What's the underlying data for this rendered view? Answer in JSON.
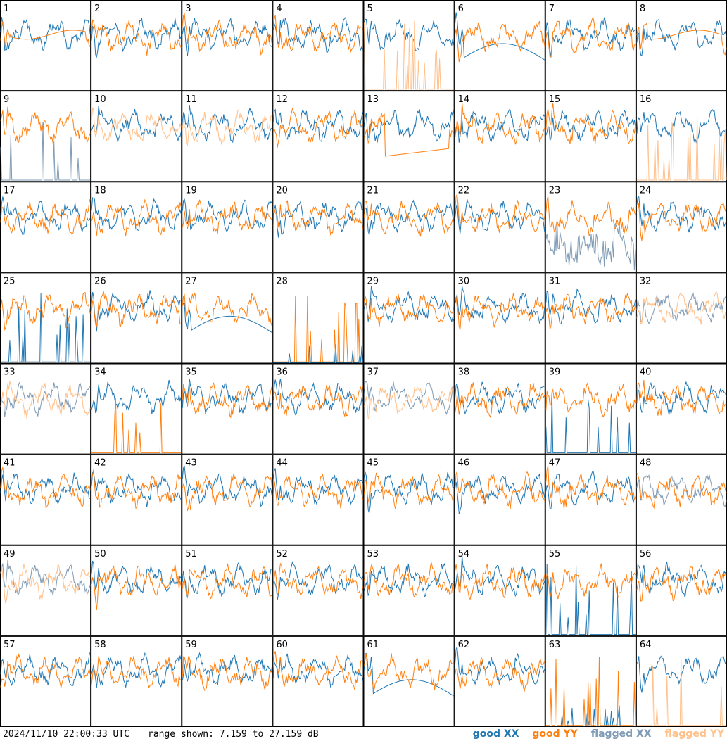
{
  "footer": {
    "timestamp": "2024/11/10 22:00:33 UTC",
    "range_text": "range shown: 7.159 to 27.159 dB"
  },
  "legend": {
    "good_xx": "good XX",
    "good_yy": "good YY",
    "flagged_xx": "flagged XX",
    "flagged_yy": "flagged YY"
  },
  "colors": {
    "good_xx": "#1f77b4",
    "good_yy": "#ff7f0e",
    "flagged_xx": "#7f9bb5",
    "flagged_yy": "#ffc08a"
  },
  "chart_data": {
    "type": "line",
    "layout": "small-multiples 8x8",
    "ylim_db": [
      7.159,
      27.159
    ],
    "series_names": [
      "good XX",
      "good YY",
      "flagged XX",
      "flagged YY"
    ],
    "panels": [
      {
        "label": "1",
        "xx": "good",
        "yy": "good",
        "note": "YY smooth plateau"
      },
      {
        "label": "2",
        "xx": "good",
        "yy": "good"
      },
      {
        "label": "3",
        "xx": "good",
        "yy": "good"
      },
      {
        "label": "4",
        "xx": "good",
        "yy": "good"
      },
      {
        "label": "5",
        "xx": "good",
        "yy": "flagged",
        "note": "YY near floor with spikes"
      },
      {
        "label": "6",
        "xx": "good",
        "yy": "good",
        "note": "XX dips low"
      },
      {
        "label": "7",
        "xx": "good",
        "yy": "good"
      },
      {
        "label": "8",
        "xx": "good",
        "yy": "good",
        "note": "YY smooth plateau"
      },
      {
        "label": "9",
        "xx": "flagged",
        "yy": "good",
        "note": "XX spiky near floor"
      },
      {
        "label": "10",
        "xx": "good",
        "yy": "flagged"
      },
      {
        "label": "11",
        "xx": "good",
        "yy": "flagged"
      },
      {
        "label": "12",
        "xx": "good",
        "yy": "good"
      },
      {
        "label": "13",
        "xx": "good",
        "yy": "good",
        "note": "YY smooth low"
      },
      {
        "label": "14",
        "xx": "good",
        "yy": "good"
      },
      {
        "label": "15",
        "xx": "good",
        "yy": "good"
      },
      {
        "label": "16",
        "xx": "good",
        "yy": "flagged",
        "note": "YY near floor with spikes"
      },
      {
        "label": "17",
        "xx": "good",
        "yy": "good"
      },
      {
        "label": "18",
        "xx": "good",
        "yy": "good"
      },
      {
        "label": "19",
        "xx": "good",
        "yy": "good"
      },
      {
        "label": "20",
        "xx": "good",
        "yy": "good"
      },
      {
        "label": "21",
        "xx": "good",
        "yy": "good"
      },
      {
        "label": "22",
        "xx": "good",
        "yy": "good"
      },
      {
        "label": "23",
        "xx": "flagged",
        "yy": "good",
        "note": "XX noisy low"
      },
      {
        "label": "24",
        "xx": "good",
        "yy": "good"
      },
      {
        "label": "25",
        "xx": "good",
        "yy": "good",
        "note": "XX near floor"
      },
      {
        "label": "26",
        "xx": "good",
        "yy": "good"
      },
      {
        "label": "27",
        "xx": "good",
        "yy": "good",
        "note": "XX smooth dip"
      },
      {
        "label": "28",
        "xx": "good",
        "yy": "good",
        "note": "mostly floor with spikes"
      },
      {
        "label": "29",
        "xx": "good",
        "yy": "good"
      },
      {
        "label": "30",
        "xx": "good",
        "yy": "good"
      },
      {
        "label": "31",
        "xx": "good",
        "yy": "good"
      },
      {
        "label": "32",
        "xx": "flagged",
        "yy": "flagged"
      },
      {
        "label": "33",
        "xx": "flagged",
        "yy": "flagged"
      },
      {
        "label": "34",
        "xx": "good",
        "yy": "good",
        "note": "YY near floor with spikes"
      },
      {
        "label": "35",
        "xx": "good",
        "yy": "good"
      },
      {
        "label": "36",
        "xx": "good",
        "yy": "good"
      },
      {
        "label": "37",
        "xx": "flagged",
        "yy": "flagged"
      },
      {
        "label": "38",
        "xx": "good",
        "yy": "good"
      },
      {
        "label": "39",
        "xx": "good",
        "yy": "good",
        "note": "XX near floor with spikes"
      },
      {
        "label": "40",
        "xx": "good",
        "yy": "good"
      },
      {
        "label": "41",
        "xx": "good",
        "yy": "good"
      },
      {
        "label": "42",
        "xx": "good",
        "yy": "good"
      },
      {
        "label": "43",
        "xx": "good",
        "yy": "good"
      },
      {
        "label": "44",
        "xx": "good",
        "yy": "good"
      },
      {
        "label": "45",
        "xx": "good",
        "yy": "good"
      },
      {
        "label": "46",
        "xx": "good",
        "yy": "good"
      },
      {
        "label": "47",
        "xx": "good",
        "yy": "good"
      },
      {
        "label": "48",
        "xx": "flagged",
        "yy": "good"
      },
      {
        "label": "49",
        "xx": "flagged",
        "yy": "flagged"
      },
      {
        "label": "50",
        "xx": "good",
        "yy": "good"
      },
      {
        "label": "51",
        "xx": "good",
        "yy": "good"
      },
      {
        "label": "52",
        "xx": "good",
        "yy": "good"
      },
      {
        "label": "53",
        "xx": "good",
        "yy": "good"
      },
      {
        "label": "54",
        "xx": "good",
        "yy": "good"
      },
      {
        "label": "55",
        "xx": "good",
        "yy": "good",
        "note": "XX near floor with spikes"
      },
      {
        "label": "56",
        "xx": "good",
        "yy": "good"
      },
      {
        "label": "57",
        "xx": "good",
        "yy": "good"
      },
      {
        "label": "58",
        "xx": "good",
        "yy": "good"
      },
      {
        "label": "59",
        "xx": "good",
        "yy": "good"
      },
      {
        "label": "60",
        "xx": "good",
        "yy": "good"
      },
      {
        "label": "61",
        "xx": "good",
        "yy": "good",
        "note": "XX smooth dip"
      },
      {
        "label": "62",
        "xx": "good",
        "yy": "good"
      },
      {
        "label": "63",
        "xx": "good",
        "yy": "good",
        "note": "mostly floor with YY spikes"
      },
      {
        "label": "64",
        "xx": "good",
        "yy": "flagged",
        "note": "YY near floor with spikes"
      }
    ]
  }
}
